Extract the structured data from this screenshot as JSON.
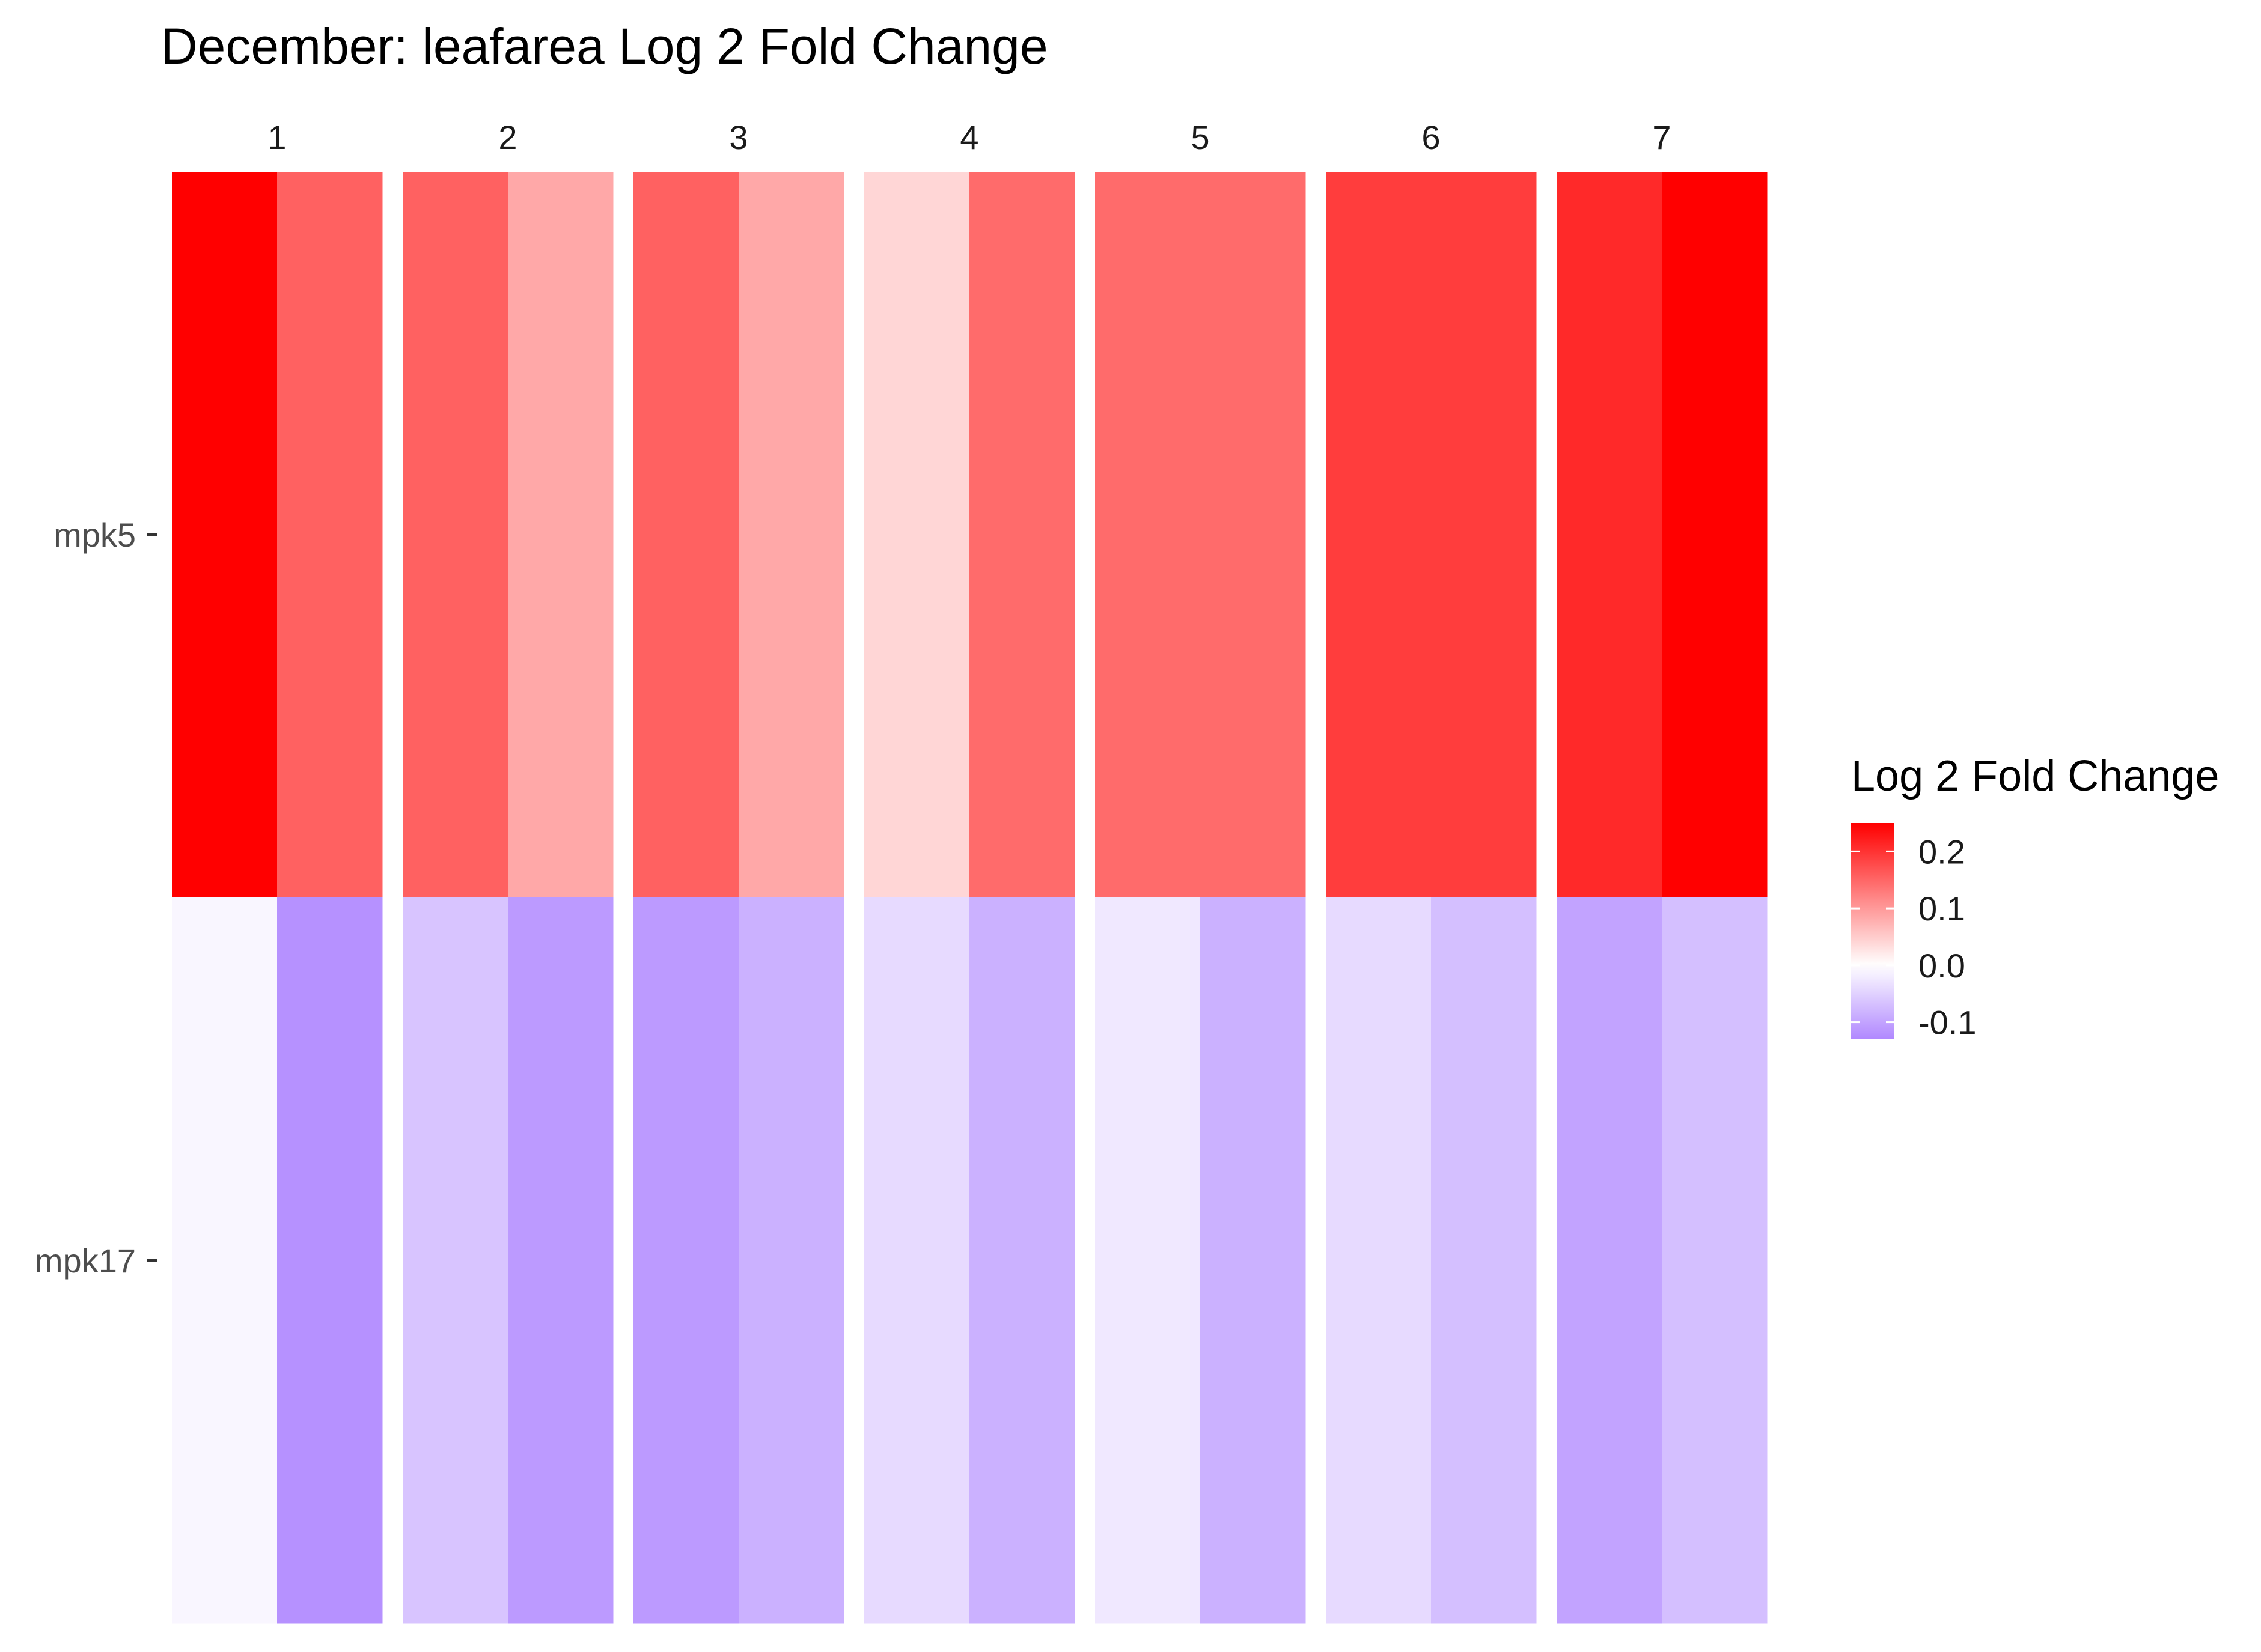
{
  "chart_data": {
    "type": "heatmap",
    "title": "December: leafarea Log 2 Fold Change",
    "facets": [
      "1",
      "2",
      "3",
      "4",
      "5",
      "6",
      "7"
    ],
    "rows": [
      "mpk5",
      "mpk17"
    ],
    "columns_per_facet": 2,
    "values": {
      "mpk5": [
        [
          0.25,
          0.155
        ],
        [
          0.155,
          0.085
        ],
        [
          0.155,
          0.085
        ],
        [
          0.04,
          0.145
        ],
        [
          0.145,
          0.145
        ],
        [
          0.19,
          0.19
        ],
        [
          0.21,
          0.25
        ]
      ],
      "mpk17": [
        [
          -0.01,
          -0.12
        ],
        [
          -0.065,
          -0.11
        ],
        [
          -0.11,
          -0.085
        ],
        [
          -0.04,
          -0.085
        ],
        [
          -0.025,
          -0.085
        ],
        [
          -0.04,
          -0.07
        ],
        [
          -0.1,
          -0.07
        ]
      ]
    },
    "legend": {
      "title": "Log 2 Fold Change",
      "ticks": [
        "0.2",
        "0.1",
        "0.0",
        "-0.1"
      ],
      "tick_values": [
        0.2,
        0.1,
        0.0,
        -0.1
      ],
      "range": [
        -0.13,
        0.25
      ],
      "placement": "right"
    },
    "colors": {
      "high": "#ff0000",
      "mid": "#ffffff",
      "low": "#b088ff"
    },
    "grid": false
  }
}
